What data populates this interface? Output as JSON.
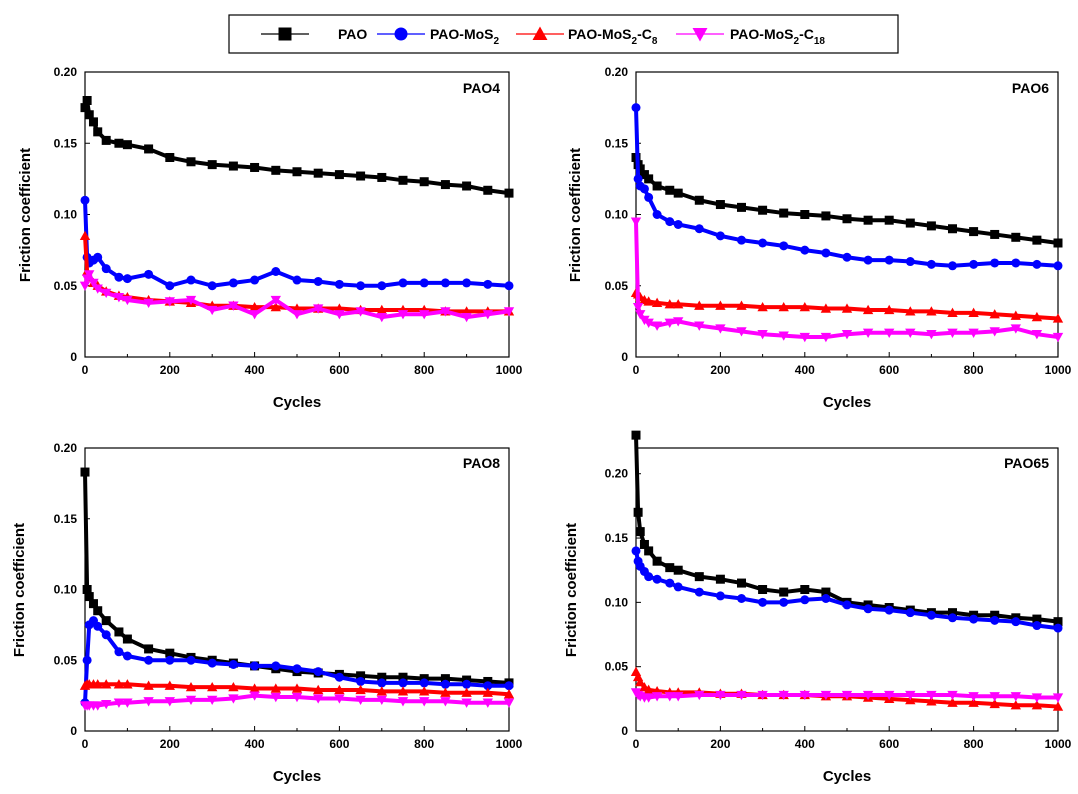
{
  "legend": {
    "entries": [
      {
        "series": "PAO",
        "base": "PAO",
        "parts": []
      },
      {
        "series": "PAO-MoS2",
        "base": "PAO-MoS",
        "parts": [
          {
            "t": "2",
            "sub": true
          }
        ]
      },
      {
        "series": "PAO-MoS2-C8",
        "base": "PAO-MoS",
        "parts": [
          {
            "t": "2",
            "sub": true
          },
          {
            "t": "-C",
            "sub": false
          },
          {
            "t": "8",
            "sub": true
          }
        ]
      },
      {
        "series": "PAO-MoS2-C18",
        "base": "PAO-MoS",
        "parts": [
          {
            "t": "2",
            "sub": true
          },
          {
            "t": "-C",
            "sub": false
          },
          {
            "t": "18",
            "sub": true
          }
        ]
      }
    ]
  },
  "series_styles": {
    "PAO": {
      "color": "#000000",
      "marker": "square"
    },
    "PAO-MoS2": {
      "color": "#0000ff",
      "marker": "circle"
    },
    "PAO-MoS2-C8": {
      "color": "#ff0000",
      "marker": "triangle-up"
    },
    "PAO-MoS2-C18": {
      "color": "#ff00ff",
      "marker": "triangle-down"
    }
  },
  "chart_data": [
    {
      "type": "line",
      "title": "PAO4",
      "xlabel": "Cycles",
      "ylabel": "Friction coefficient",
      "xlim": [
        0,
        1000
      ],
      "ylim": [
        0,
        0.2
      ],
      "xticks": [
        "0",
        "200",
        "400",
        "600",
        "800",
        "1000"
      ],
      "yticks": [
        "0",
        "0.05",
        "0.10",
        "0.15",
        "0.20"
      ],
      "x": [
        0,
        5,
        10,
        20,
        30,
        50,
        80,
        100,
        150,
        200,
        250,
        300,
        350,
        400,
        450,
        500,
        550,
        600,
        650,
        700,
        750,
        800,
        850,
        900,
        950,
        1000
      ],
      "series": [
        {
          "name": "PAO",
          "values": [
            0.175,
            0.18,
            0.17,
            0.165,
            0.158,
            0.152,
            0.15,
            0.149,
            0.146,
            0.14,
            0.137,
            0.135,
            0.134,
            0.133,
            0.131,
            0.13,
            0.129,
            0.128,
            0.127,
            0.126,
            0.124,
            0.123,
            0.121,
            0.12,
            0.117,
            0.115
          ]
        },
        {
          "name": "PAO-MoS2",
          "values": [
            0.11,
            0.07,
            0.066,
            0.068,
            0.07,
            0.062,
            0.056,
            0.055,
            0.058,
            0.05,
            0.054,
            0.05,
            0.052,
            0.054,
            0.06,
            0.054,
            0.053,
            0.051,
            0.05,
            0.05,
            0.052,
            0.052,
            0.052,
            0.052,
            0.051,
            0.05
          ]
        },
        {
          "name": "PAO-MoS2-C8",
          "values": [
            0.085,
            0.06,
            0.056,
            0.052,
            0.05,
            0.046,
            0.043,
            0.042,
            0.04,
            0.039,
            0.038,
            0.036,
            0.036,
            0.035,
            0.035,
            0.034,
            0.034,
            0.034,
            0.033,
            0.033,
            0.033,
            0.033,
            0.032,
            0.032,
            0.032,
            0.032
          ]
        },
        {
          "name": "PAO-MoS2-C18",
          "values": [
            0.05,
            0.055,
            0.058,
            0.052,
            0.048,
            0.045,
            0.042,
            0.04,
            0.038,
            0.039,
            0.04,
            0.033,
            0.036,
            0.03,
            0.04,
            0.03,
            0.034,
            0.03,
            0.032,
            0.028,
            0.03,
            0.03,
            0.032,
            0.028,
            0.03,
            0.032
          ]
        }
      ]
    },
    {
      "type": "line",
      "title": "PAO6",
      "xlabel": "Cycles",
      "ylabel": "Friction coefficient",
      "xlim": [
        0,
        1000
      ],
      "ylim": [
        0,
        0.2
      ],
      "xticks": [
        "0",
        "200",
        "400",
        "600",
        "800",
        "1000"
      ],
      "yticks": [
        "0",
        "0.05",
        "0.10",
        "0.15",
        "0.20"
      ],
      "x": [
        0,
        5,
        10,
        20,
        30,
        50,
        80,
        100,
        150,
        200,
        250,
        300,
        350,
        400,
        450,
        500,
        550,
        600,
        650,
        700,
        750,
        800,
        850,
        900,
        950,
        1000
      ],
      "series": [
        {
          "name": "PAO",
          "values": [
            0.14,
            0.135,
            0.132,
            0.128,
            0.125,
            0.12,
            0.117,
            0.115,
            0.11,
            0.107,
            0.105,
            0.103,
            0.101,
            0.1,
            0.099,
            0.097,
            0.096,
            0.096,
            0.094,
            0.092,
            0.09,
            0.088,
            0.086,
            0.084,
            0.082,
            0.08
          ]
        },
        {
          "name": "PAO-MoS2",
          "values": [
            0.175,
            0.125,
            0.12,
            0.118,
            0.112,
            0.1,
            0.095,
            0.093,
            0.09,
            0.085,
            0.082,
            0.08,
            0.078,
            0.075,
            0.073,
            0.07,
            0.068,
            0.068,
            0.067,
            0.065,
            0.064,
            0.065,
            0.066,
            0.066,
            0.065,
            0.064
          ]
        },
        {
          "name": "PAO-MoS2-C8",
          "values": [
            0.045,
            0.044,
            0.042,
            0.04,
            0.039,
            0.038,
            0.037,
            0.037,
            0.036,
            0.036,
            0.036,
            0.035,
            0.035,
            0.035,
            0.034,
            0.034,
            0.033,
            0.033,
            0.032,
            0.032,
            0.031,
            0.031,
            0.03,
            0.029,
            0.028,
            0.027
          ]
        },
        {
          "name": "PAO-MoS2-C18",
          "values": [
            0.095,
            0.035,
            0.03,
            0.026,
            0.024,
            0.022,
            0.024,
            0.025,
            0.022,
            0.02,
            0.018,
            0.016,
            0.015,
            0.014,
            0.014,
            0.016,
            0.017,
            0.017,
            0.017,
            0.016,
            0.017,
            0.017,
            0.018,
            0.02,
            0.016,
            0.014
          ]
        }
      ]
    },
    {
      "type": "line",
      "title": "PAO8",
      "xlabel": "Cycles",
      "ylabel": "Friction coefficient",
      "xlim": [
        0,
        1000
      ],
      "ylim": [
        0,
        0.2
      ],
      "xticks": [
        "0",
        "200",
        "400",
        "600",
        "800",
        "1000"
      ],
      "yticks": [
        "0",
        "0.05",
        "0.10",
        "0.15",
        "0.20"
      ],
      "x": [
        0,
        5,
        10,
        20,
        30,
        50,
        80,
        100,
        150,
        200,
        250,
        300,
        350,
        400,
        450,
        500,
        550,
        600,
        650,
        700,
        750,
        800,
        850,
        900,
        950,
        1000
      ],
      "series": [
        {
          "name": "PAO",
          "values": [
            0.183,
            0.1,
            0.095,
            0.09,
            0.085,
            0.078,
            0.07,
            0.065,
            0.058,
            0.055,
            0.052,
            0.05,
            0.048,
            0.046,
            0.044,
            0.042,
            0.041,
            0.04,
            0.039,
            0.038,
            0.038,
            0.037,
            0.037,
            0.036,
            0.035,
            0.034
          ]
        },
        {
          "name": "PAO-MoS2",
          "values": [
            0.02,
            0.05,
            0.075,
            0.078,
            0.074,
            0.068,
            0.056,
            0.053,
            0.05,
            0.05,
            0.05,
            0.048,
            0.047,
            0.046,
            0.046,
            0.044,
            0.042,
            0.038,
            0.035,
            0.034,
            0.034,
            0.034,
            0.033,
            0.033,
            0.032,
            0.032
          ]
        },
        {
          "name": "PAO-MoS2-C8",
          "values": [
            0.032,
            0.033,
            0.033,
            0.033,
            0.033,
            0.033,
            0.033,
            0.033,
            0.032,
            0.032,
            0.031,
            0.031,
            0.031,
            0.03,
            0.03,
            0.03,
            0.029,
            0.029,
            0.029,
            0.028,
            0.028,
            0.028,
            0.027,
            0.027,
            0.027,
            0.026
          ]
        },
        {
          "name": "PAO-MoS2-C18",
          "values": [
            0.018,
            0.018,
            0.018,
            0.018,
            0.018,
            0.019,
            0.02,
            0.02,
            0.021,
            0.021,
            0.022,
            0.022,
            0.023,
            0.025,
            0.024,
            0.024,
            0.023,
            0.023,
            0.022,
            0.022,
            0.021,
            0.021,
            0.021,
            0.02,
            0.02,
            0.02
          ]
        }
      ]
    },
    {
      "type": "line",
      "title": "PAO65",
      "xlabel": "Cycles",
      "ylabel": "Friction coefficient",
      "xlim": [
        0,
        1000
      ],
      "ylim": [
        0,
        0.22
      ],
      "xticks": [
        "0",
        "200",
        "400",
        "600",
        "800",
        "1000"
      ],
      "yticks": [
        "0",
        "0.05",
        "0.10",
        "0.15",
        "0.20"
      ],
      "x": [
        0,
        5,
        10,
        20,
        30,
        50,
        80,
        100,
        150,
        200,
        250,
        300,
        350,
        400,
        450,
        500,
        550,
        600,
        650,
        700,
        750,
        800,
        850,
        900,
        950,
        1000
      ],
      "series": [
        {
          "name": "PAO",
          "values": [
            0.23,
            0.17,
            0.155,
            0.145,
            0.14,
            0.132,
            0.127,
            0.125,
            0.12,
            0.118,
            0.115,
            0.11,
            0.108,
            0.11,
            0.108,
            0.1,
            0.098,
            0.096,
            0.094,
            0.092,
            0.092,
            0.09,
            0.09,
            0.088,
            0.087,
            0.085
          ]
        },
        {
          "name": "PAO-MoS2",
          "values": [
            0.14,
            0.132,
            0.128,
            0.124,
            0.12,
            0.118,
            0.115,
            0.112,
            0.108,
            0.105,
            0.103,
            0.1,
            0.1,
            0.102,
            0.103,
            0.098,
            0.095,
            0.094,
            0.092,
            0.09,
            0.088,
            0.087,
            0.086,
            0.085,
            0.082,
            0.08
          ]
        },
        {
          "name": "PAO-MoS2-C8",
          "values": [
            0.046,
            0.042,
            0.038,
            0.034,
            0.032,
            0.031,
            0.03,
            0.03,
            0.03,
            0.029,
            0.029,
            0.028,
            0.028,
            0.028,
            0.027,
            0.027,
            0.026,
            0.025,
            0.024,
            0.023,
            0.022,
            0.022,
            0.021,
            0.02,
            0.02,
            0.019
          ]
        },
        {
          "name": "PAO-MoS2-C18",
          "values": [
            0.03,
            0.028,
            0.027,
            0.026,
            0.026,
            0.027,
            0.027,
            0.027,
            0.028,
            0.028,
            0.028,
            0.028,
            0.028,
            0.028,
            0.028,
            0.028,
            0.028,
            0.028,
            0.028,
            0.028,
            0.028,
            0.027,
            0.027,
            0.027,
            0.026,
            0.026
          ]
        }
      ]
    }
  ]
}
